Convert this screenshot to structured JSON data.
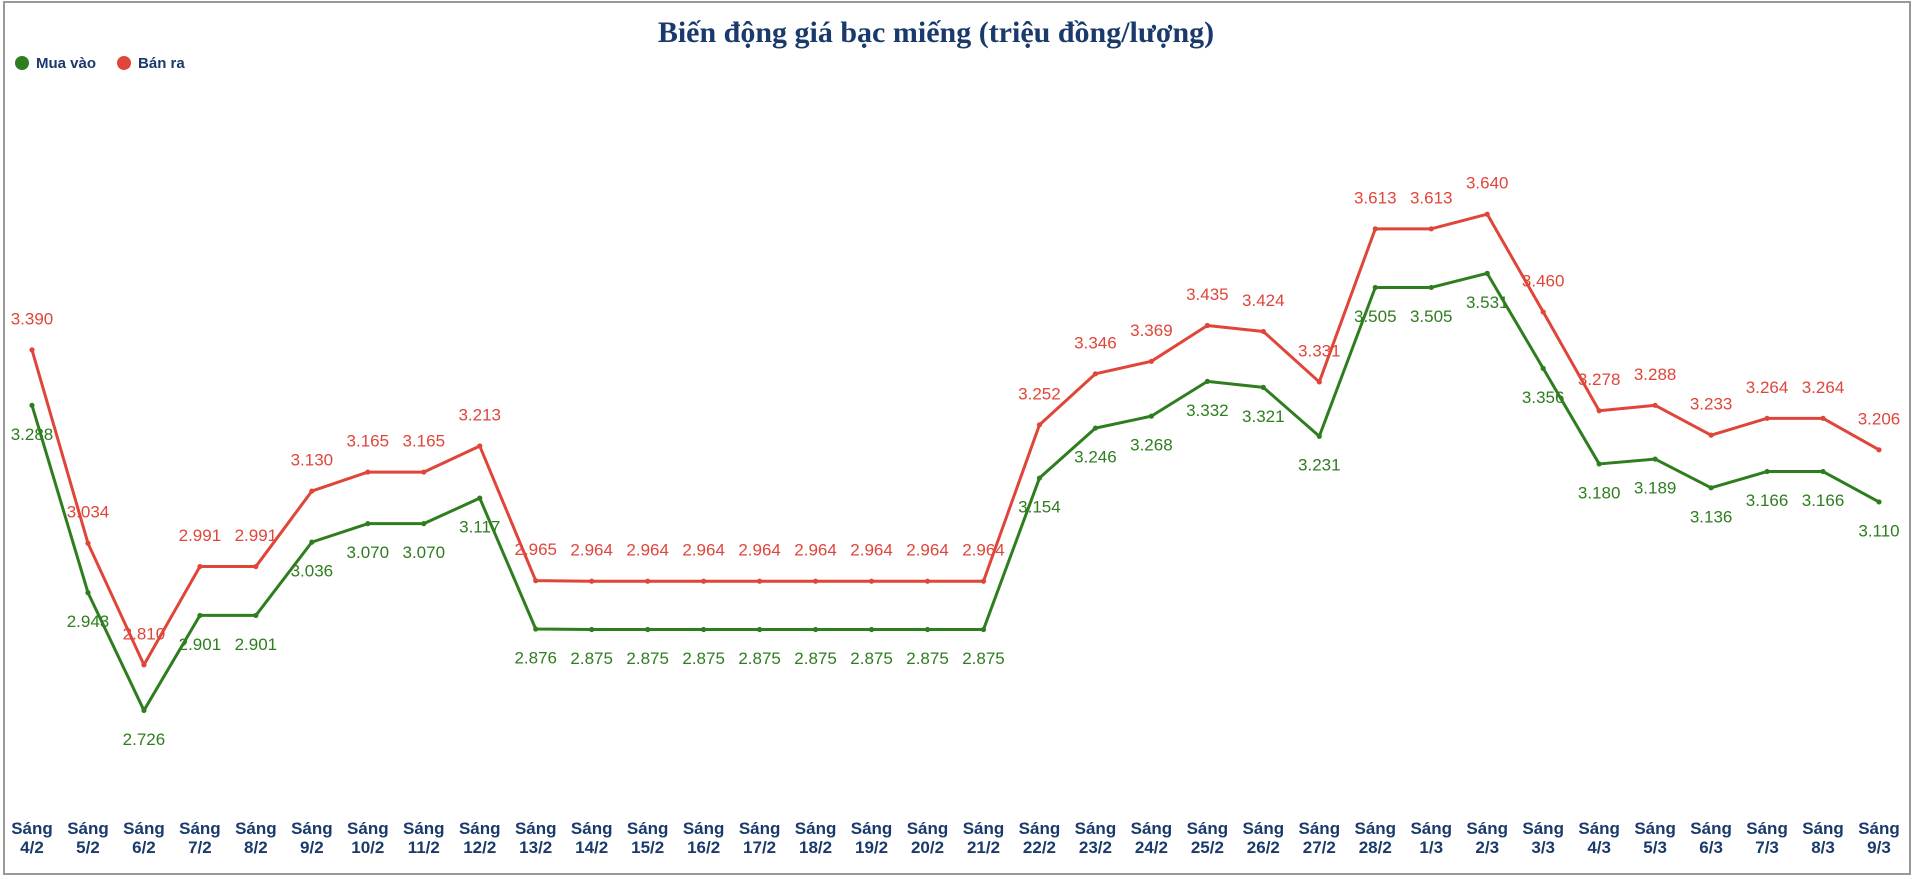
{
  "chart_data": {
    "type": "line",
    "title": "Biến động giá bạc miếng (triệu đồng/lượng)",
    "categories": [
      "Sáng 4/2",
      "Sáng 5/2",
      "Sáng 6/2",
      "Sáng 7/2",
      "Sáng 8/2",
      "Sáng 9/2",
      "Sáng 10/2",
      "Sáng 11/2",
      "Sáng 12/2",
      "Sáng 13/2",
      "Sáng 14/2",
      "Sáng 15/2",
      "Sáng 16/2",
      "Sáng 17/2",
      "Sáng 18/2",
      "Sáng 19/2",
      "Sáng 20/2",
      "Sáng 21/2",
      "Sáng 22/2",
      "Sáng 23/2",
      "Sáng 24/2",
      "Sáng 25/2",
      "Sáng 26/2",
      "Sáng 27/2",
      "Sáng 28/2",
      "Sáng 1/3",
      "Sáng 2/3",
      "Sáng 3/3",
      "Sáng 4/3",
      "Sáng 5/3",
      "Sáng 6/3",
      "Sáng 7/3",
      "Sáng 8/3",
      "Sáng 9/3"
    ],
    "series": [
      {
        "name": "Mua vào",
        "color": "#2e7d1e",
        "label_position": "below",
        "values": [
          3.288,
          2.943,
          2.726,
          2.901,
          2.901,
          3.036,
          3.07,
          3.07,
          3.117,
          2.876,
          2.875,
          2.875,
          2.875,
          2.875,
          2.875,
          2.875,
          2.875,
          2.875,
          3.154,
          3.246,
          3.268,
          3.332,
          3.321,
          3.231,
          3.505,
          3.505,
          3.531,
          3.356,
          3.18,
          3.189,
          3.136,
          3.166,
          3.166,
          3.11
        ],
        "value_labels": [
          "3.288",
          "2.943",
          "2.726",
          "2.901",
          "2.901",
          "3.036",
          "3.070",
          "3.070",
          "3.117",
          "2.876",
          "2.875",
          "2.875",
          "2.875",
          "2.875",
          "2.875",
          "2.875",
          "2.875",
          "2.875",
          "3.154",
          "3.246",
          "3.268",
          "3.332",
          "3.321",
          "3.231",
          "3.505",
          "3.505",
          "3.531",
          "3.356",
          "3.180",
          "3.189",
          "3.136",
          "3.166",
          "3.166",
          "3.110"
        ]
      },
      {
        "name": "Bán ra",
        "color": "#e0453a",
        "label_position": "above",
        "values": [
          3.39,
          3.034,
          2.81,
          2.991,
          2.991,
          3.13,
          3.165,
          3.165,
          3.213,
          2.965,
          2.964,
          2.964,
          2.964,
          2.964,
          2.964,
          2.964,
          2.964,
          2.964,
          3.252,
          3.346,
          3.369,
          3.435,
          3.424,
          3.331,
          3.613,
          3.613,
          3.64,
          3.46,
          3.278,
          3.288,
          3.233,
          3.264,
          3.264,
          3.206
        ],
        "value_labels": [
          "3.390",
          "3.034",
          "2.810",
          "2.991",
          "2.991",
          "3.130",
          "3.165",
          "3.165",
          "3.213",
          "2.965",
          "2.964",
          "2.964",
          "2.964",
          "2.964",
          "2.964",
          "2.964",
          "2.964",
          "2.964",
          "3.252",
          "3.346",
          "3.369",
          "3.435",
          "3.424",
          "3.331",
          "3.613",
          "3.613",
          "3.640",
          "3.460",
          "3.278",
          "3.288",
          "3.233",
          "3.264",
          "3.264",
          "3.206"
        ]
      }
    ],
    "ylim": [
      2.55,
      3.9
    ],
    "legend": "top-left"
  }
}
